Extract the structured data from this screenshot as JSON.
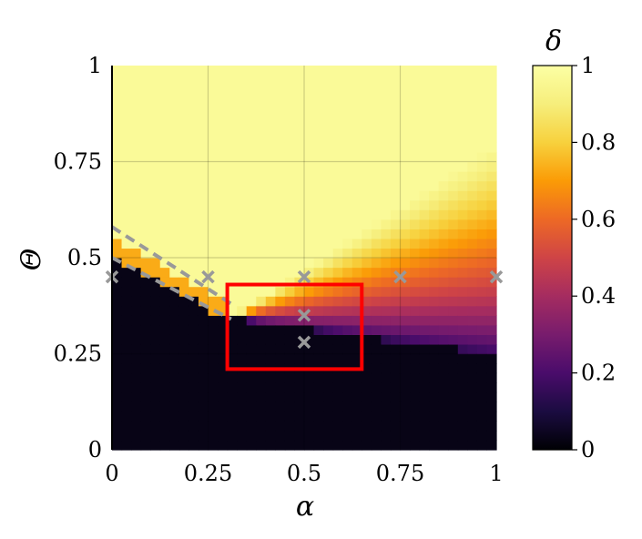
{
  "chart_data": {
    "type": "heatmap",
    "xlabel": "α",
    "ylabel": "Θ",
    "colorbar_label": "δ",
    "colormap": "inferno",
    "xlim": [
      0,
      1
    ],
    "ylim": [
      0,
      1
    ],
    "clim": [
      0,
      1
    ],
    "x_ticks": [
      "0",
      "0.25",
      "0.5",
      "0.75",
      "1"
    ],
    "y_ticks": [
      "0",
      "0.25",
      "0.5",
      "0.75",
      "1"
    ],
    "colorbar_ticks": [
      "0",
      "0.2",
      "0.4",
      "0.6",
      "0.8",
      "1"
    ],
    "grid": true,
    "markers": {
      "style": "x",
      "color": "#999999",
      "points": [
        {
          "x": 0,
          "y": 0.45
        },
        {
          "x": 0.25,
          "y": 0.45
        },
        {
          "x": 0.5,
          "y": 0.45
        },
        {
          "x": 0.75,
          "y": 0.45
        },
        {
          "x": 1,
          "y": 0.45
        },
        {
          "x": 0.5,
          "y": 0.35
        },
        {
          "x": 0.5,
          "y": 0.28
        }
      ]
    },
    "dashed_lines": {
      "color": "#999999",
      "lines": [
        {
          "x": [
            0,
            0.31
          ],
          "y": [
            0.58,
            0.38
          ]
        },
        {
          "x": [
            0,
            0.31
          ],
          "y": [
            0.5,
            0.34
          ]
        }
      ]
    },
    "highlight_box": {
      "x0": 0.3,
      "x1": 0.65,
      "y0": 0.21,
      "y1": 0.43,
      "color": "#ff0000"
    }
  }
}
